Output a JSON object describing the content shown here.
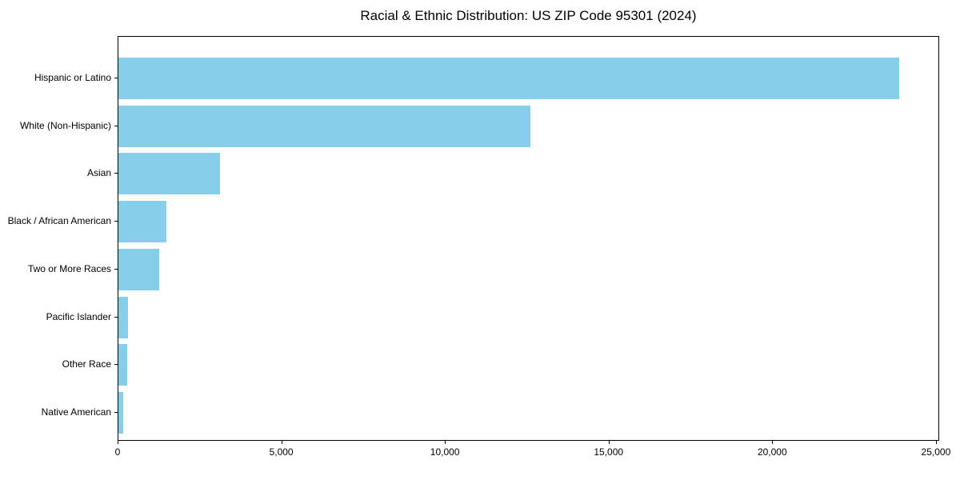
{
  "figure": {
    "background": "#ffffff",
    "text_color": "#000000"
  },
  "chart_data": {
    "type": "bar",
    "orientation": "horizontal",
    "title": "Racial & Ethnic Distribution: US ZIP Code 95301 (2024)",
    "xlabel": "",
    "ylabel": "",
    "categories": [
      "Hispanic or Latino",
      "White (Non-Hispanic)",
      "Asian",
      "Black / African American",
      "Two or More Races",
      "Pacific Islander",
      "Other Race",
      "Native American"
    ],
    "values": [
      23890,
      12620,
      3100,
      1470,
      1250,
      300,
      270,
      150
    ],
    "xlim": [
      0,
      25100
    ],
    "xticks": [
      {
        "value": 0,
        "label": "0"
      },
      {
        "value": 5000,
        "label": "5,000"
      },
      {
        "value": 10000,
        "label": "10,000"
      },
      {
        "value": 15000,
        "label": "15,000"
      },
      {
        "value": 20000,
        "label": "20,000"
      },
      {
        "value": 25000,
        "label": "25,000"
      }
    ],
    "bar_color": "#87CEEB",
    "axis_color": "#000000",
    "grid": false,
    "legend": "none"
  }
}
